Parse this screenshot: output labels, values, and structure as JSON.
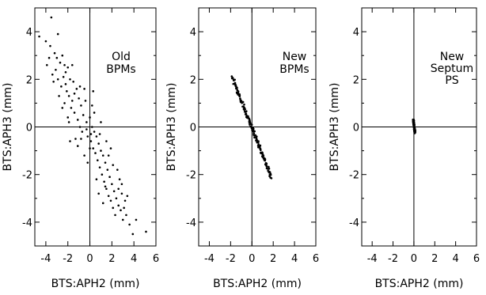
{
  "chart_data": [
    {
      "type": "scatter",
      "annotation": [
        "Old",
        "BPMs"
      ],
      "xlabel": "BTS:APH2  (mm)",
      "ylabel": "BTS:APH3  (mm)",
      "xlim": [
        -5,
        6
      ],
      "ylim": [
        -5,
        5
      ],
      "xticks": [
        -4,
        -2,
        0,
        2,
        4,
        6
      ],
      "yticks": [
        -4,
        -2,
        0,
        2,
        4
      ],
      "grid": false,
      "crosshair_at_zero": true,
      "points": [
        [
          -4.6,
          3.8
        ],
        [
          -3.5,
          4.6
        ],
        [
          -2.9,
          3.9
        ],
        [
          -3.6,
          3.4
        ],
        [
          -3.2,
          3.1
        ],
        [
          -3.9,
          2.6
        ],
        [
          -2.5,
          3.0
        ],
        [
          -2.3,
          2.6
        ],
        [
          -3.1,
          2.4
        ],
        [
          -2.7,
          2.7
        ],
        [
          -2.2,
          2.3
        ],
        [
          -2.9,
          2.0
        ],
        [
          -2.4,
          2.1
        ],
        [
          -3.3,
          1.9
        ],
        [
          -2.0,
          2.5
        ],
        [
          -2.6,
          1.7
        ],
        [
          -1.8,
          2.0
        ],
        [
          -2.1,
          1.5
        ],
        [
          -1.5,
          1.9
        ],
        [
          -1.9,
          1.3
        ],
        [
          -2.3,
          1.0
        ],
        [
          -1.6,
          1.1
        ],
        [
          -1.2,
          1.6
        ],
        [
          -1.7,
          0.8
        ],
        [
          -1.0,
          1.2
        ],
        [
          -1.4,
          0.6
        ],
        [
          -0.8,
          0.9
        ],
        [
          -1.1,
          0.3
        ],
        [
          -0.6,
          0.5
        ],
        [
          -0.4,
          1.1
        ],
        [
          -0.9,
          0.0
        ],
        [
          -0.3,
          0.2
        ],
        [
          -0.7,
          -0.2
        ],
        [
          0.0,
          0.4
        ],
        [
          0.2,
          0.0
        ],
        [
          -0.2,
          -0.4
        ],
        [
          0.4,
          -0.2
        ],
        [
          0.1,
          -0.6
        ],
        [
          0.6,
          -0.4
        ],
        [
          0.3,
          -0.9
        ],
        [
          0.8,
          -0.7
        ],
        [
          0.5,
          -1.1
        ],
        [
          1.0,
          -1.0
        ],
        [
          0.7,
          -1.4
        ],
        [
          1.2,
          -1.2
        ],
        [
          0.9,
          -1.7
        ],
        [
          1.4,
          -1.5
        ],
        [
          1.1,
          -2.0
        ],
        [
          1.6,
          -1.8
        ],
        [
          1.3,
          -2.3
        ],
        [
          1.8,
          -2.1
        ],
        [
          1.5,
          -2.6
        ],
        [
          2.0,
          -2.4
        ],
        [
          1.7,
          -2.9
        ],
        [
          2.2,
          -2.7
        ],
        [
          1.9,
          -3.1
        ],
        [
          2.4,
          -3.0
        ],
        [
          2.1,
          -3.4
        ],
        [
          2.6,
          -3.3
        ],
        [
          2.3,
          -3.7
        ],
        [
          2.8,
          -3.5
        ],
        [
          3.0,
          -3.9
        ],
        [
          3.3,
          -3.7
        ],
        [
          3.6,
          -4.1
        ],
        [
          3.9,
          -4.5
        ],
        [
          5.1,
          -4.4
        ],
        [
          4.2,
          -3.9
        ],
        [
          2.7,
          -2.2
        ],
        [
          2.9,
          -2.8
        ],
        [
          3.2,
          -3.1
        ],
        [
          -0.5,
          -1.2
        ],
        [
          -1.3,
          -0.5
        ],
        [
          0.3,
          1.5
        ],
        [
          1.0,
          0.2
        ],
        [
          -2.0,
          0.4
        ],
        [
          -0.2,
          -1.5
        ],
        [
          0.6,
          -2.2
        ],
        [
          1.9,
          -0.9
        ],
        [
          -1.1,
          -0.8
        ],
        [
          0.2,
          0.9
        ],
        [
          -3.4,
          2.2
        ],
        [
          -2.8,
          1.3
        ],
        [
          -1.6,
          2.6
        ],
        [
          -0.5,
          1.6
        ],
        [
          0.0,
          -0.9
        ],
        [
          1.5,
          -0.6
        ],
        [
          2.5,
          -1.8
        ],
        [
          0.8,
          -2.8
        ],
        [
          1.2,
          -3.2
        ],
        [
          -0.8,
          -0.5
        ],
        [
          -2.5,
          0.8
        ],
        [
          -1.9,
          0.2
        ],
        [
          -0.3,
          -0.1
        ],
        [
          0.4,
          0.6
        ],
        [
          1.7,
          -1.2
        ],
        [
          2.1,
          -1.6
        ],
        [
          2.9,
          -2.4
        ],
        [
          3.4,
          -2.9
        ],
        [
          -3.0,
          2.9
        ],
        [
          -2.2,
          1.8
        ],
        [
          -1.4,
          1.4
        ],
        [
          -0.9,
          1.7
        ],
        [
          0.1,
          -0.3
        ],
        [
          0.9,
          -0.3
        ],
        [
          1.4,
          -2.5
        ],
        [
          2.6,
          -2.6
        ],
        [
          3.1,
          -3.4
        ],
        [
          -4.0,
          3.6
        ],
        [
          -3.7,
          2.9
        ],
        [
          -1.8,
          -0.6
        ]
      ]
    },
    {
      "type": "scatter",
      "annotation": [
        "New",
        "BPMs"
      ],
      "xlabel": "BTS:APH2  (mm)",
      "ylabel": "BTS:APH3  (mm)",
      "xlim": [
        -5,
        6
      ],
      "ylim": [
        -5,
        5
      ],
      "xticks": [
        -4,
        -2,
        0,
        2,
        4,
        6
      ],
      "yticks": [
        -4,
        -2,
        0,
        2,
        4
      ],
      "grid": false,
      "crosshair_at_zero": true,
      "line_cluster": {
        "from": [
          -1.85,
          2.1
        ],
        "to": [
          1.8,
          -2.1
        ],
        "count": 160,
        "jitter": [
          0.09,
          0.09
        ]
      }
    },
    {
      "type": "scatter",
      "annotation": [
        "New",
        "Septum",
        "PS"
      ],
      "xlabel": "BTS:APH2  (mm)",
      "ylabel": "BTS:APH3  (mm)",
      "xlim": [
        -5,
        6
      ],
      "ylim": [
        -5,
        5
      ],
      "xticks": [
        -4,
        -2,
        0,
        2,
        4,
        6
      ],
      "yticks": [
        -4,
        -2,
        0,
        2,
        4
      ],
      "grid": false,
      "crosshair_at_zero": true,
      "line_cluster": {
        "from": [
          -0.05,
          0.3
        ],
        "to": [
          0.1,
          -0.25
        ],
        "count": 90,
        "jitter": [
          0.05,
          0.05
        ]
      }
    }
  ]
}
